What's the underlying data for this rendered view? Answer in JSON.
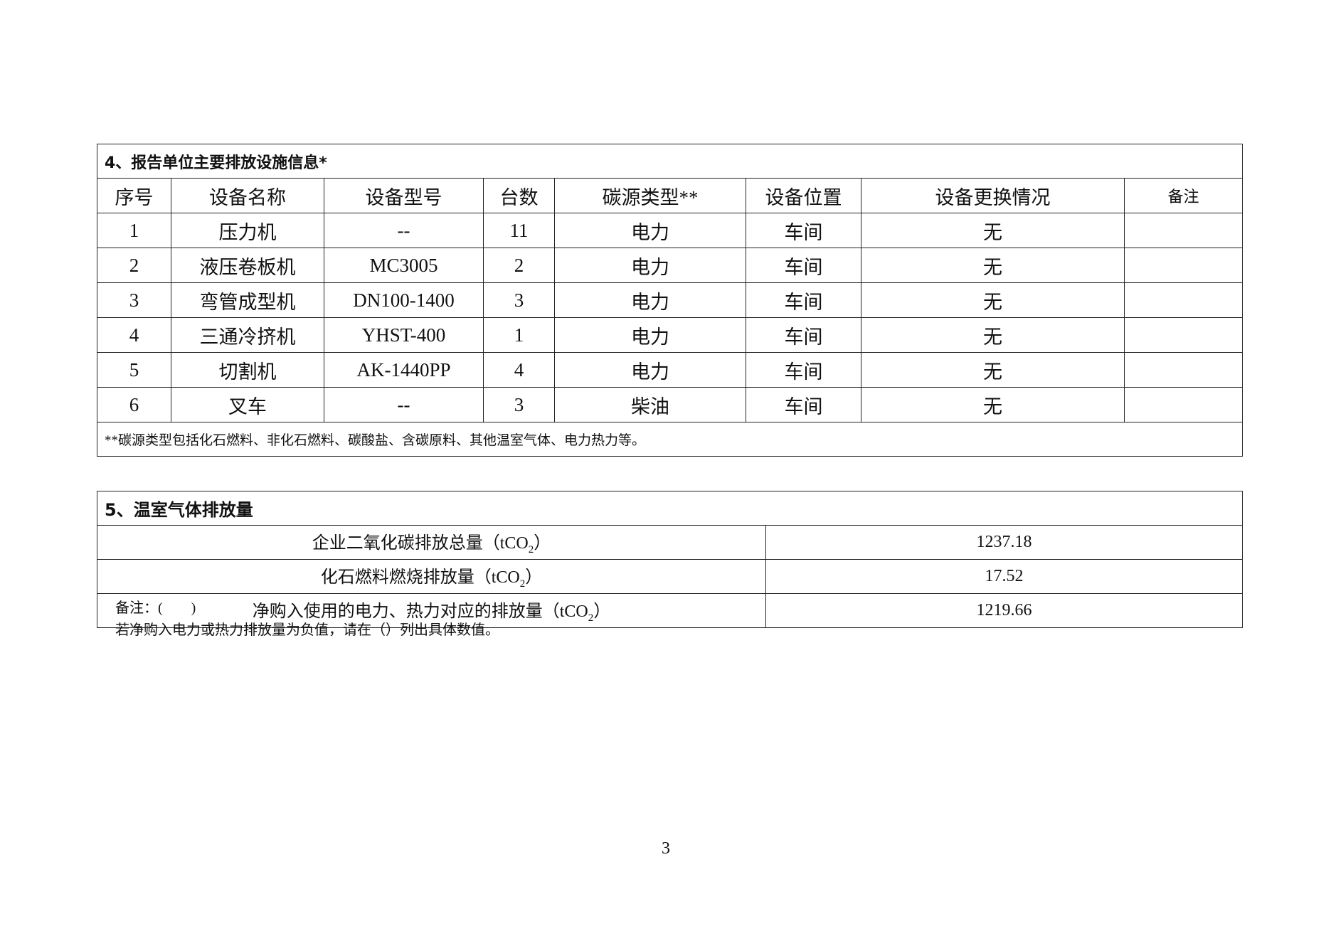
{
  "section4": {
    "title": "4、报告单位主要排放设施信息*",
    "headers": [
      "序号",
      "设备名称",
      "设备型号",
      "台数",
      "碳源类型**",
      "设备位置",
      "设备更换情况",
      "备注"
    ],
    "rows": [
      [
        "1",
        "压力机",
        "--",
        "11",
        "电力",
        "车间",
        "无",
        ""
      ],
      [
        "2",
        "液压卷板机",
        "MC3005",
        "2",
        "电力",
        "车间",
        "无",
        ""
      ],
      [
        "3",
        "弯管成型机",
        "DN100-1400",
        "3",
        "电力",
        "车间",
        "无",
        ""
      ],
      [
        "4",
        "三通冷挤机",
        "YHST-400",
        "1",
        "电力",
        "车间",
        "无",
        ""
      ],
      [
        "5",
        "切割机",
        "AK-1440PP",
        "4",
        "电力",
        "车间",
        "无",
        ""
      ],
      [
        "6",
        "叉车",
        "--",
        "3",
        "柴油",
        "车间",
        "无",
        ""
      ]
    ],
    "footnote": "**碳源类型包括化石燃料、非化石燃料、碳酸盐、含碳原料、其他温室气体、电力热力等。"
  },
  "section5": {
    "title": "5、温室气体排放量",
    "rows": [
      {
        "label": "企业二氧化碳排放总量（tCO",
        "sub": "2",
        "close": "）",
        "value": "1237.18"
      },
      {
        "label": "化石燃料燃烧排放量（tCO",
        "sub": "2",
        "close": "）",
        "value": "17.52"
      },
      {
        "label": "净购入使用的电力、热力对应的排放量（tCO",
        "sub": "2",
        "close": "）",
        "value": "1219.66"
      }
    ]
  },
  "remarks": {
    "line1": "备注：(　　)",
    "line2": "若净购入电力或热力排放量为负值，请在（）列出具体数值。"
  },
  "page_number": "3"
}
